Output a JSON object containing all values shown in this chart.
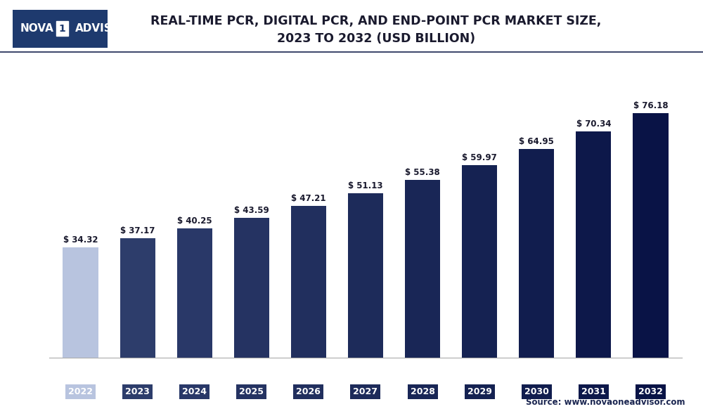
{
  "title": "REAL-TIME PCR, DIGITAL PCR, AND END-POINT PCR MARKET SIZE,\n2023 TO 2032 (USD BILLION)",
  "categories": [
    "2022",
    "2023",
    "2024",
    "2025",
    "2026",
    "2027",
    "2028",
    "2029",
    "2030",
    "2031",
    "2032"
  ],
  "values": [
    34.32,
    37.17,
    40.25,
    43.59,
    47.21,
    51.13,
    55.38,
    59.97,
    64.95,
    70.34,
    76.18
  ],
  "bar_colors": [
    "#b8c4df",
    "#2d3d6b",
    "#293868",
    "#253362",
    "#212f5e",
    "#1d2b5a",
    "#192656",
    "#152252",
    "#111d4e",
    "#0d184a",
    "#091346"
  ],
  "tick_bg_colors": [
    "#b8c4df",
    "#2d3d6b",
    "#293868",
    "#253362",
    "#212f5e",
    "#1d2b5a",
    "#192656",
    "#152252",
    "#111d4e",
    "#0d184a",
    "#091346"
  ],
  "ylim": [
    0,
    88
  ],
  "source_text": "Source: www.novaoneadvisor.com",
  "background_color": "#ffffff",
  "plot_bg_color": "#ffffff",
  "grid_color": "#e0e0e0",
  "title_color": "#1a1a2e",
  "label_color": "#1a1a2e",
  "bar_width": 0.62,
  "logo_bg": "#1e3a6e",
  "logo_text_color": "#ffffff",
  "border_color": "#1a2550",
  "source_color": "#1a2550"
}
